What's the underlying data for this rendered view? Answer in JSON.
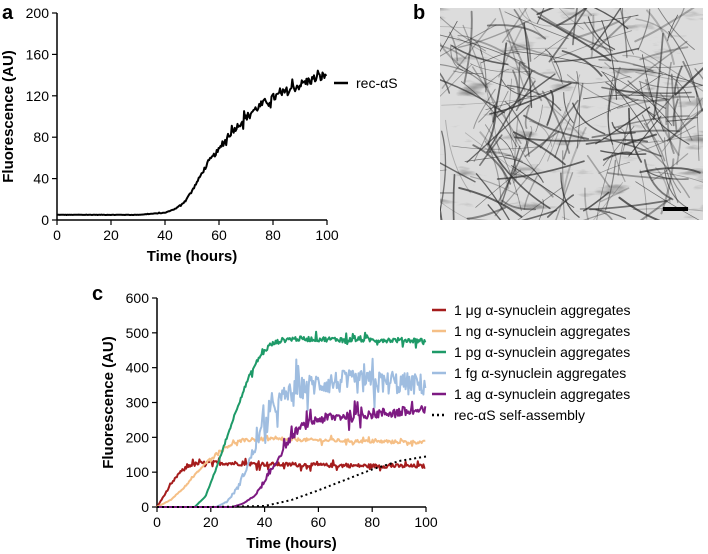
{
  "panels": {
    "a": "a",
    "b": "b",
    "c": "c"
  },
  "chart_data": [
    {
      "id": "a",
      "type": "line",
      "xlabel": "Time (hours)",
      "ylabel": "Fluorescence (AU)",
      "xlim": [
        0,
        100
      ],
      "ylim": [
        0,
        200
      ],
      "xticks": [
        0,
        20,
        40,
        60,
        80,
        100
      ],
      "yticks": [
        0,
        40,
        80,
        120,
        160,
        200
      ],
      "legend_position": "right",
      "series": [
        {
          "name": "rec-αS",
          "color": "#000000",
          "noise": 8,
          "x": [
            0,
            10,
            20,
            30,
            40,
            44,
            47,
            50,
            53,
            56,
            60,
            64,
            68,
            72,
            76,
            80,
            84,
            88,
            92,
            96,
            100
          ],
          "y": [
            5,
            5,
            5,
            5,
            7,
            11,
            17,
            28,
            42,
            56,
            68,
            83,
            94,
            104,
            112,
            118,
            123,
            128,
            133,
            137,
            140
          ]
        }
      ]
    },
    {
      "id": "c",
      "type": "line",
      "xlabel": "Time (hours)",
      "ylabel": "Fluorescence (AU)",
      "xlim": [
        0,
        100
      ],
      "ylim": [
        0,
        600
      ],
      "xticks": [
        0,
        20,
        40,
        60,
        80,
        100
      ],
      "yticks": [
        0,
        100,
        200,
        300,
        400,
        500,
        600
      ],
      "legend_position": "right",
      "series": [
        {
          "name": "1 μg α-synuclein aggregates",
          "color": "#a51c1c",
          "dash": "solid",
          "noise": 10,
          "x": [
            0,
            4,
            8,
            12,
            16,
            20,
            30,
            40,
            60,
            80,
            100
          ],
          "y": [
            0,
            50,
            95,
            120,
            125,
            127,
            125,
            123,
            120,
            118,
            117
          ]
        },
        {
          "name": "1 ng α-synuclein aggregates",
          "color": "#f5bf86",
          "dash": "solid",
          "noise": 8,
          "x": [
            0,
            5,
            10,
            15,
            20,
            25,
            30,
            35,
            40,
            60,
            80,
            100
          ],
          "y": [
            0,
            20,
            55,
            100,
            140,
            170,
            188,
            193,
            195,
            192,
            188,
            186
          ]
        },
        {
          "name": "1 pg α-synuclein aggregates",
          "color": "#1e9a68",
          "dash": "solid",
          "noise": 12,
          "x": [
            0,
            14,
            18,
            22,
            26,
            30,
            34,
            38,
            42,
            46,
            50,
            60,
            80,
            100
          ],
          "y": [
            0,
            0,
            30,
            110,
            200,
            290,
            370,
            430,
            465,
            478,
            483,
            482,
            480,
            478
          ]
        },
        {
          "name": "1 fg α-synuclein aggregates",
          "color": "#9fbde0",
          "dash": "solid",
          "noise": 55,
          "x": [
            0,
            22,
            26,
            30,
            34,
            38,
            42,
            46,
            50,
            55,
            60,
            70,
            80,
            90,
            100
          ],
          "y": [
            0,
            0,
            15,
            55,
            125,
            205,
            270,
            310,
            330,
            345,
            355,
            360,
            358,
            355,
            350
          ]
        },
        {
          "name": "1 ag α-synuclein aggregates",
          "color": "#7d1a82",
          "dash": "solid",
          "noise": 25,
          "x": [
            0,
            28,
            32,
            36,
            40,
            44,
            48,
            52,
            56,
            60,
            70,
            80,
            90,
            100
          ],
          "y": [
            0,
            0,
            10,
            30,
            70,
            125,
            180,
            220,
            240,
            252,
            262,
            268,
            272,
            276
          ]
        },
        {
          "name": "rec-αS self-assembly",
          "color": "#000000",
          "dash": "dotted",
          "noise": 0,
          "x": [
            0,
            20,
            40,
            50,
            60,
            70,
            80,
            90,
            100
          ],
          "y": [
            0,
            0,
            3,
            20,
            48,
            78,
            108,
            132,
            145
          ]
        }
      ]
    }
  ]
}
